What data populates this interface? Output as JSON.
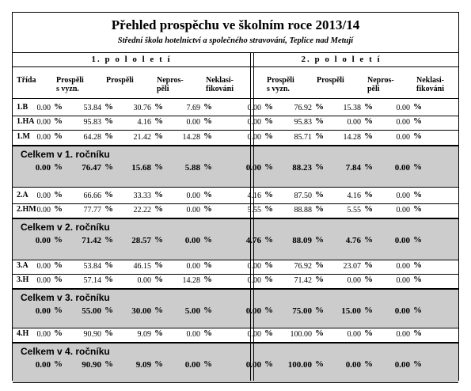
{
  "title": "Přehled prospěchu ve školním roce 2013/14",
  "subtitle": "Střední škola hotelnictví a společného stravování, Teplice nad Metují",
  "semesters": [
    "1. p o l o l e t í",
    "2. p o l o l e t í"
  ],
  "columns": {
    "trida": "Třída",
    "prospeli_vyzn": [
      "Prospěli",
      "s vyzn."
    ],
    "prospeli": "Prospěli",
    "neprospeli": [
      "Nepros-",
      "pěli"
    ],
    "neklasifikovani": [
      "Neklasi-",
      "fikováni"
    ]
  },
  "percent_sign": "%",
  "groups": [
    {
      "rows": [
        {
          "cls": "1.B",
          "s1": [
            "0.00",
            "53.84",
            "30.76",
            "7.69"
          ],
          "s2": [
            "0.00",
            "76.92",
            "15.38",
            "0.00"
          ]
        },
        {
          "cls": "1.HA",
          "s1": [
            "0.00",
            "95.83",
            "4.16",
            "0.00"
          ],
          "s2": [
            "0.00",
            "95.83",
            "0.00",
            "0.00"
          ]
        },
        {
          "cls": "1.M",
          "s1": [
            "0.00",
            "64.28",
            "21.42",
            "14.28"
          ],
          "s2": [
            "0.00",
            "85.71",
            "14.28",
            "0.00"
          ]
        }
      ],
      "summary": {
        "label": "Celkem v 1. ročníku",
        "s1": [
          "0.00",
          "76.47",
          "15.68",
          "5.88"
        ],
        "s2": [
          "0.00",
          "88.23",
          "7.84",
          "0.00"
        ]
      }
    },
    {
      "rows": [
        {
          "cls": "2.A",
          "s1": [
            "0.00",
            "66.66",
            "33.33",
            "0.00"
          ],
          "s2": [
            "4.16",
            "87.50",
            "4.16",
            "0.00"
          ]
        },
        {
          "cls": "2.HM",
          "s1": [
            "0.00",
            "77.77",
            "22.22",
            "0.00"
          ],
          "s2": [
            "5.55",
            "88.88",
            "5.55",
            "0.00"
          ]
        }
      ],
      "summary": {
        "label": "Celkem v 2. ročníku",
        "s1": [
          "0.00",
          "71.42",
          "28.57",
          "0.00"
        ],
        "s2": [
          "4.76",
          "88.09",
          "4.76",
          "0.00"
        ]
      }
    },
    {
      "rows": [
        {
          "cls": "3.A",
          "s1": [
            "0.00",
            "53.84",
            "46.15",
            "0.00"
          ],
          "s2": [
            "0.00",
            "76.92",
            "23.07",
            "0.00"
          ]
        },
        {
          "cls": "3.H",
          "s1": [
            "0.00",
            "57.14",
            "0.00",
            "14.28"
          ],
          "s2": [
            "0.00",
            "71.42",
            "0.00",
            "0.00"
          ]
        }
      ],
      "summary": {
        "label": "Celkem v 3. ročníku",
        "s1": [
          "0.00",
          "55.00",
          "30.00",
          "5.00"
        ],
        "s2": [
          "0.00",
          "75.00",
          "15.00",
          "0.00"
        ]
      }
    },
    {
      "rows": [
        {
          "cls": "4.H",
          "s1": [
            "0.00",
            "90.90",
            "9.09",
            "0.00"
          ],
          "s2": [
            "0.00",
            "100.00",
            "0.00",
            "0.00"
          ]
        }
      ],
      "summary": {
        "label": "Celkem v 4. ročníku",
        "s1": [
          "0.00",
          "90.90",
          "9.09",
          "0.00"
        ],
        "s2": [
          "0.00",
          "100.00",
          "0.00",
          "0.00"
        ]
      }
    }
  ]
}
